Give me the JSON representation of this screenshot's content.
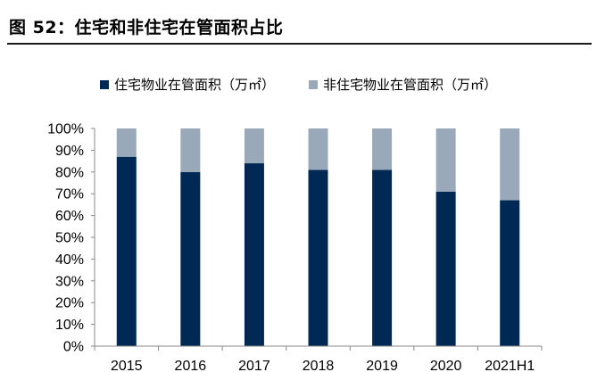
{
  "figure": {
    "title": "图 52：住宅和非住宅在管面积占比"
  },
  "colors": {
    "residential": "#002855",
    "non_residential": "#9aa9b9",
    "axis": "#888888"
  },
  "chart_data": {
    "type": "bar",
    "stacked": true,
    "categories": [
      "2015",
      "2016",
      "2017",
      "2018",
      "2019",
      "2020",
      "2021H1"
    ],
    "series": [
      {
        "name": "住宅物业在管面积（万㎡）",
        "values": [
          87,
          80,
          84,
          81,
          81,
          71,
          67
        ]
      },
      {
        "name": "非住宅物业在管面积（万㎡）",
        "values": [
          13,
          20,
          16,
          19,
          19,
          29,
          33
        ]
      }
    ],
    "y_ticks": [
      "0%",
      "10%",
      "20%",
      "30%",
      "40%",
      "50%",
      "60%",
      "70%",
      "80%",
      "90%",
      "100%"
    ],
    "ylim": [
      0,
      100
    ],
    "legend_position": "top-center",
    "grid": false
  }
}
